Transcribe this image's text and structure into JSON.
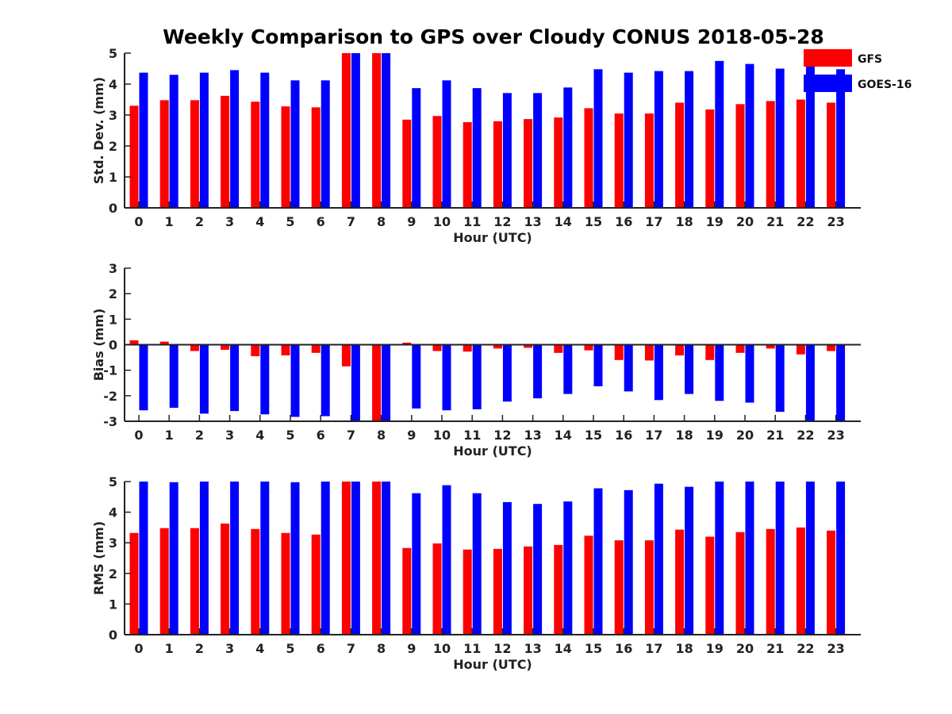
{
  "title": "Weekly Comparison to GPS over Cloudy CONUS 2018-05-28",
  "colors": {
    "GFS": "#ff0000",
    "GOES-16": "#0000ff"
  },
  "legend": {
    "position": "top-right",
    "entries": [
      "GFS",
      "GOES-16"
    ]
  },
  "chart_data": [
    {
      "type": "bar",
      "xlabel": "Hour (UTC)",
      "ylabel": "Std. Dev. (mm)",
      "ylim": [
        0,
        5
      ],
      "yticks": [
        "0",
        "1",
        "2",
        "3",
        "4",
        "5"
      ],
      "categories": [
        "0",
        "1",
        "2",
        "3",
        "4",
        "5",
        "6",
        "7",
        "8",
        "9",
        "10",
        "11",
        "12",
        "13",
        "14",
        "15",
        "16",
        "17",
        "18",
        "19",
        "20",
        "21",
        "22",
        "23"
      ],
      "series": [
        {
          "name": "GFS",
          "values": [
            3.3,
            3.48,
            3.48,
            3.62,
            3.43,
            3.28,
            3.25,
            5.0,
            5.0,
            2.85,
            2.97,
            2.77,
            2.8,
            2.87,
            2.92,
            3.22,
            3.05,
            3.05,
            3.4,
            3.18,
            3.35,
            3.45,
            3.5,
            3.4
          ]
        },
        {
          "name": "GOES-16",
          "values": [
            4.37,
            4.3,
            4.37,
            4.45,
            4.37,
            4.12,
            4.12,
            5.0,
            5.0,
            3.87,
            4.12,
            3.87,
            3.71,
            3.71,
            3.89,
            4.48,
            4.37,
            4.42,
            4.42,
            4.75,
            4.65,
            4.5,
            4.6,
            4.48
          ]
        }
      ]
    },
    {
      "type": "bar",
      "xlabel": "Hour (UTC)",
      "ylabel": "Bias (mm)",
      "ylim": [
        -3,
        3
      ],
      "yticks": [
        "-3",
        "-2",
        "-1",
        "0",
        "1",
        "2",
        "3"
      ],
      "categories": [
        "0",
        "1",
        "2",
        "3",
        "4",
        "5",
        "6",
        "7",
        "8",
        "9",
        "10",
        "11",
        "12",
        "13",
        "14",
        "15",
        "16",
        "17",
        "18",
        "19",
        "20",
        "21",
        "22",
        "23"
      ],
      "series": [
        {
          "name": "GFS",
          "values": [
            0.17,
            0.12,
            -0.25,
            -0.2,
            -0.45,
            -0.42,
            -0.32,
            -0.85,
            -3.0,
            0.08,
            -0.25,
            -0.27,
            -0.15,
            -0.12,
            -0.32,
            -0.22,
            -0.6,
            -0.62,
            -0.42,
            -0.6,
            -0.32,
            -0.15,
            -0.38,
            -0.25
          ]
        },
        {
          "name": "GOES-16",
          "values": [
            -2.57,
            -2.47,
            -2.7,
            -2.6,
            -2.73,
            -2.83,
            -2.8,
            -3.0,
            -3.0,
            -2.5,
            -2.57,
            -2.53,
            -2.23,
            -2.1,
            -1.93,
            -1.63,
            -1.83,
            -2.17,
            -1.93,
            -2.2,
            -2.27,
            -2.63,
            -3.0,
            -3.0
          ]
        }
      ]
    },
    {
      "type": "bar",
      "xlabel": "Hour (UTC)",
      "ylabel": "RMS (mm)",
      "ylim": [
        0,
        5
      ],
      "yticks": [
        "0",
        "1",
        "2",
        "3",
        "4",
        "5"
      ],
      "categories": [
        "0",
        "1",
        "2",
        "3",
        "4",
        "5",
        "6",
        "7",
        "8",
        "9",
        "10",
        "11",
        "12",
        "13",
        "14",
        "15",
        "16",
        "17",
        "18",
        "19",
        "20",
        "21",
        "22",
        "23"
      ],
      "series": [
        {
          "name": "GFS",
          "values": [
            3.32,
            3.48,
            3.48,
            3.63,
            3.45,
            3.32,
            3.27,
            5.0,
            5.0,
            2.83,
            2.98,
            2.78,
            2.8,
            2.88,
            2.93,
            3.23,
            3.08,
            3.08,
            3.43,
            3.2,
            3.35,
            3.45,
            3.5,
            3.4
          ]
        },
        {
          "name": "GOES-16",
          "values": [
            5.0,
            4.98,
            5.0,
            5.0,
            5.0,
            4.98,
            5.0,
            5.0,
            5.0,
            4.62,
            4.88,
            4.62,
            4.33,
            4.27,
            4.35,
            4.78,
            4.72,
            4.93,
            4.83,
            5.0,
            5.0,
            5.0,
            5.0,
            5.0
          ]
        }
      ]
    }
  ]
}
